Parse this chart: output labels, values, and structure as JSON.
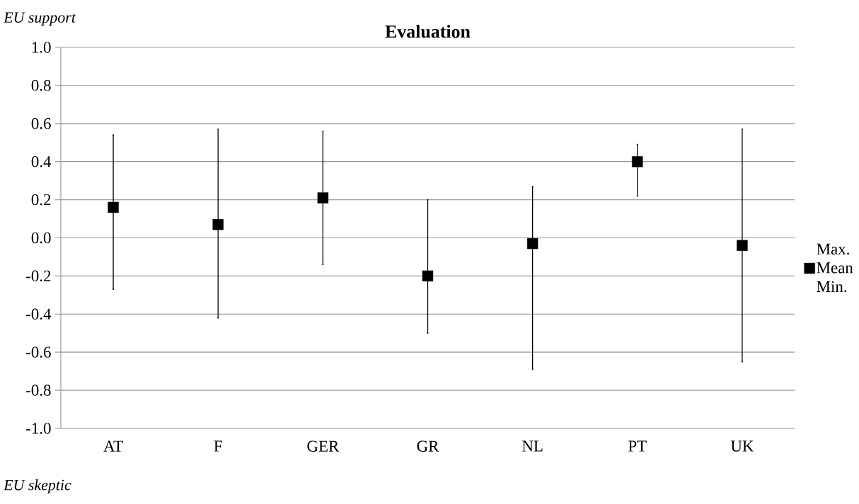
{
  "chart_data": {
    "type": "scatter",
    "title": "Evaluation",
    "annotations": [
      "EU support",
      "EU skeptic"
    ],
    "categories": [
      "AT",
      "F",
      "GER",
      "GR",
      "NL",
      "PT",
      "UK"
    ],
    "series": [
      {
        "name": "Max.",
        "color": "#000000",
        "values": [
          0.54,
          0.57,
          0.56,
          0.2,
          0.27,
          0.49,
          0.57
        ]
      },
      {
        "name": "Mean",
        "color": "#000000",
        "marker": "square",
        "values": [
          0.16,
          0.07,
          0.21,
          -0.2,
          -0.03,
          0.4,
          -0.04
        ]
      },
      {
        "name": "Min.",
        "color": "#000000",
        "values": [
          -0.27,
          -0.42,
          -0.14,
          -0.5,
          -0.69,
          0.22,
          -0.65
        ]
      }
    ],
    "ylim": [
      -1.0,
      1.0
    ],
    "yticks": [
      {
        "value": -1.0,
        "label": "-1.0"
      },
      {
        "value": -0.8,
        "label": "-0.8"
      },
      {
        "value": -0.6,
        "label": "-0.6"
      },
      {
        "value": -0.4,
        "label": "-0.4"
      },
      {
        "value": -0.2,
        "label": "-0.2"
      },
      {
        "value": 0.0,
        "label": "0.0"
      },
      {
        "value": 0.2,
        "label": "0.2"
      },
      {
        "value": 0.4,
        "label": "0.4"
      },
      {
        "value": 0.6,
        "label": "0.6"
      },
      {
        "value": 0.8,
        "label": "0.8"
      },
      {
        "value": 1.0,
        "label": "1.0"
      }
    ],
    "grid": "y",
    "legend": "right"
  }
}
